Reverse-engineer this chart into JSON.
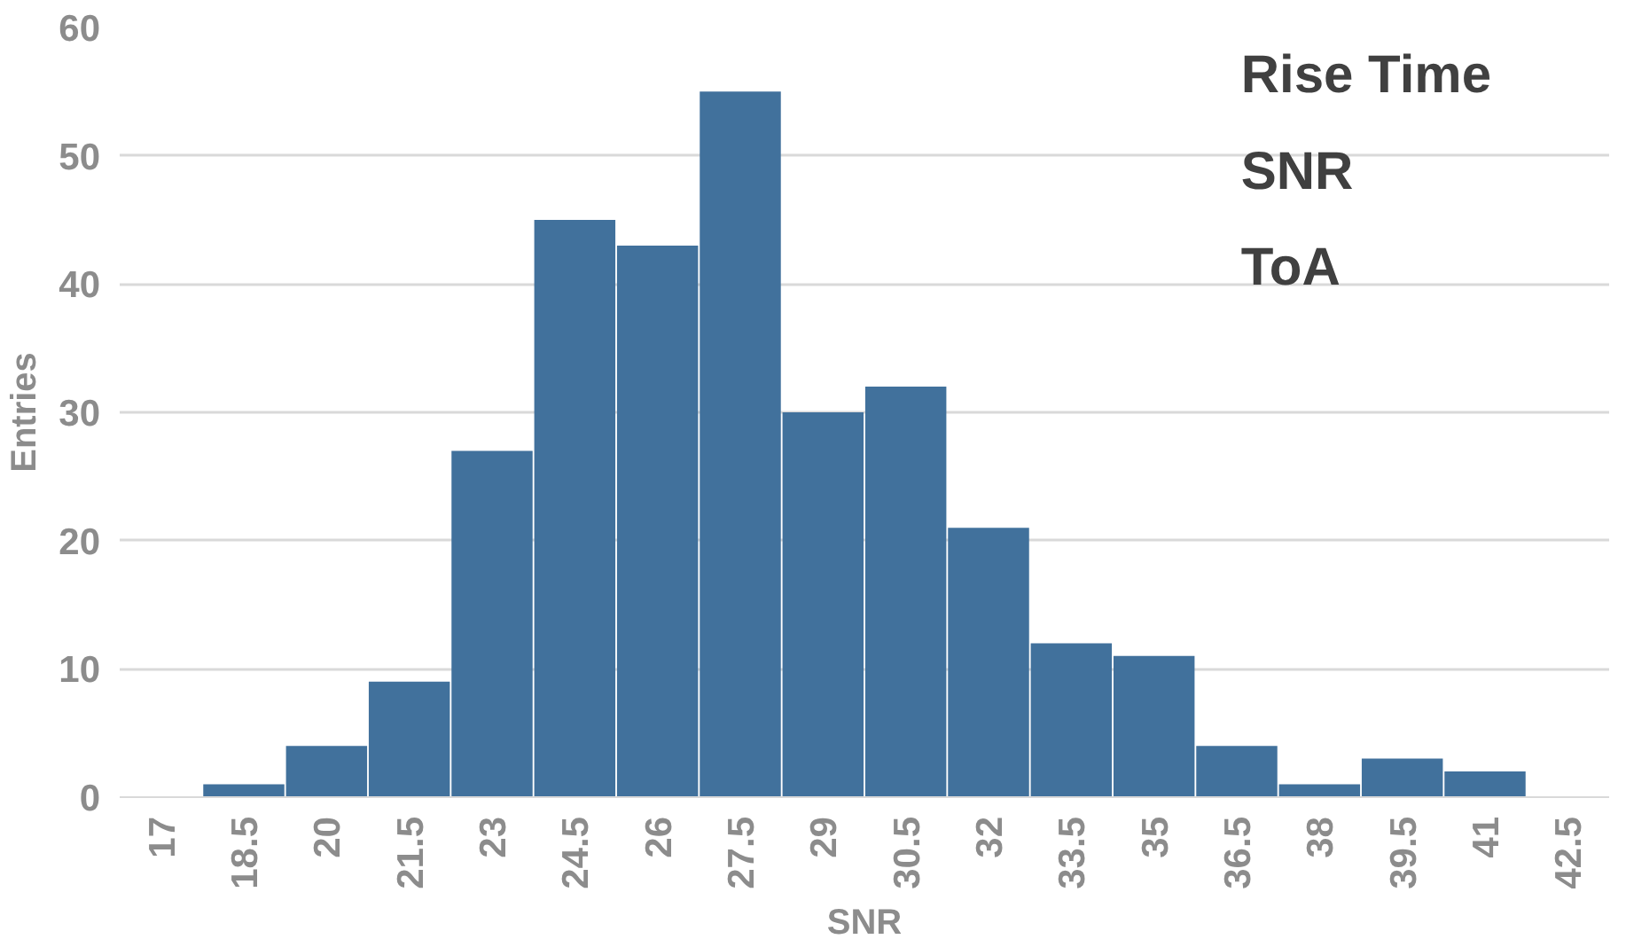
{
  "chart_data": {
    "type": "bar",
    "xlabel": "SNR",
    "ylabel": "Entries",
    "categories": [
      "17",
      "18.5",
      "20",
      "21.5",
      "23",
      "24.5",
      "26",
      "27.5",
      "29",
      "30.5",
      "32",
      "33.5",
      "35",
      "36.5",
      "38",
      "39.5",
      "41",
      "42.5"
    ],
    "values": [
      0,
      1,
      4,
      9,
      27,
      45,
      43,
      55,
      30,
      32,
      21,
      12,
      11,
      4,
      1,
      3,
      2,
      0
    ],
    "color": "#41719c",
    "ylim": [
      0,
      60
    ],
    "yticks": [
      0,
      10,
      20,
      30,
      40,
      50,
      60
    ],
    "grid": "y",
    "annotations": [
      "Rise Time",
      "SNR",
      "ToA"
    ]
  }
}
